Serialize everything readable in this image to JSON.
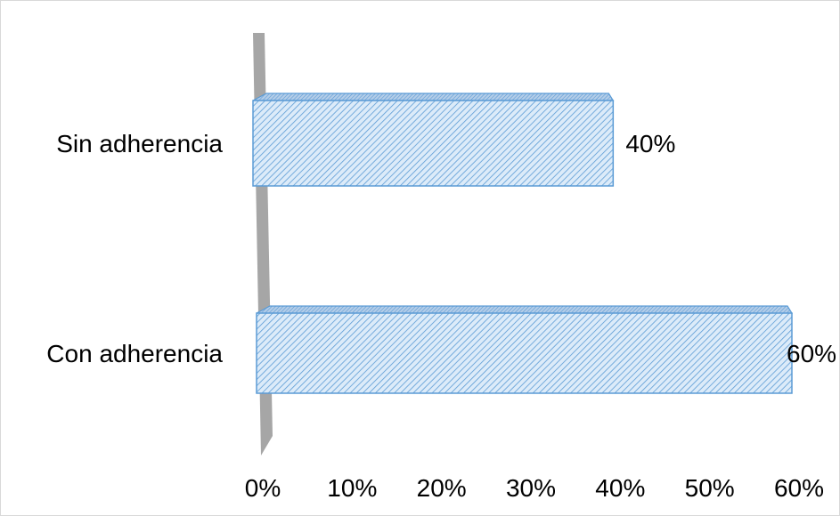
{
  "chart_data": {
    "type": "bar",
    "orientation": "horizontal",
    "style": "3d-hatched",
    "categories": [
      "Sin adherencia",
      "Con adherencia"
    ],
    "values": [
      40,
      60
    ],
    "value_labels": [
      "40%",
      "60%"
    ],
    "xlim": [
      0,
      60
    ],
    "x_ticks": [
      0,
      10,
      20,
      30,
      40,
      50,
      60
    ],
    "x_tick_labels": [
      "0%",
      "10%",
      "20%",
      "30%",
      "40%",
      "50%",
      "60%"
    ],
    "title": "",
    "xlabel": "",
    "ylabel": "",
    "grid": false,
    "legend": "none",
    "colors": {
      "bar_fill": "#dcebf9",
      "bar_hatch": "#5b9bd5",
      "bar_stroke": "#5b9bd5",
      "wall": "#a6a6a6",
      "text": "#000000"
    }
  }
}
